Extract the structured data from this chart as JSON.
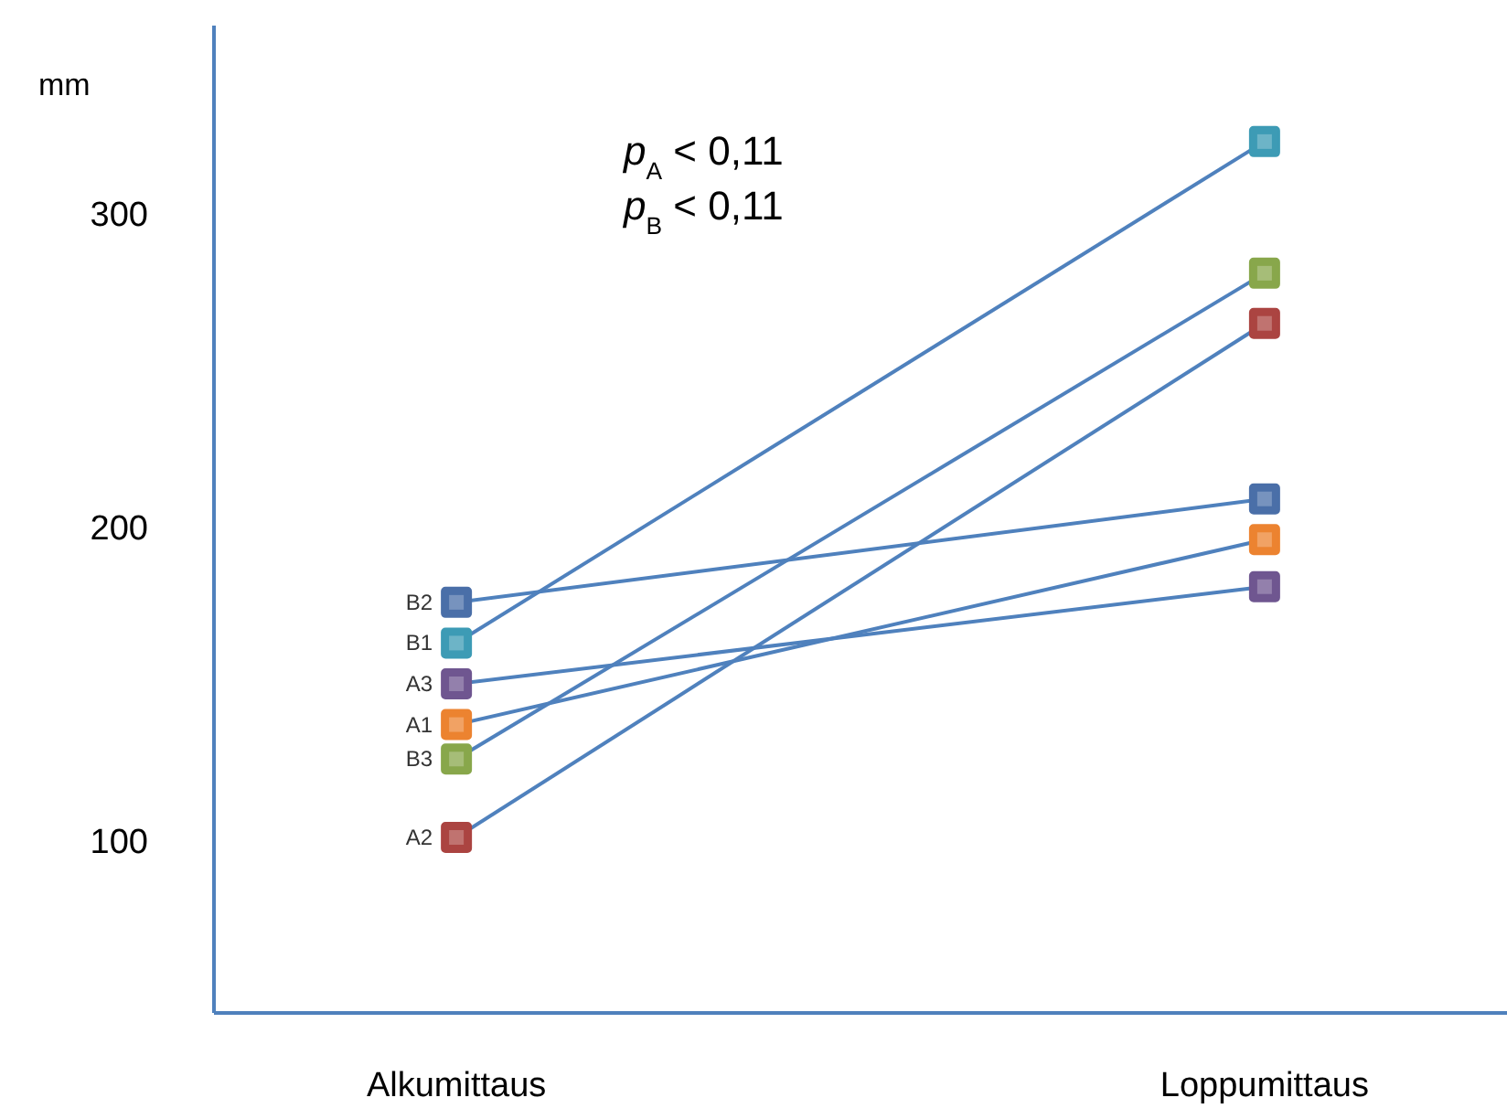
{
  "chart_data": {
    "type": "line",
    "categories": [
      "Alkumittaus",
      "Loppumittaus"
    ],
    "ylabel": "mm",
    "ylim": [
      45,
      360
    ],
    "yticks": [
      100,
      200,
      300
    ],
    "grid": false,
    "legend": false,
    "marker": "square",
    "line_style": "solid",
    "color": "#4f81bd",
    "annotations": [
      "p$_{A}$ < 0,11",
      "p$_{B}$ < 0,11"
    ],
    "series": [
      {
        "name": "B2",
        "color": "#4a6fa8",
        "values": [
          176,
          209
        ]
      },
      {
        "name": "B1",
        "color": "#3d9bb5",
        "values": [
          163,
          323
        ]
      },
      {
        "name": "A3",
        "color": "#6f5690",
        "values": [
          150,
          181
        ]
      },
      {
        "name": "A1",
        "color": "#ec8330",
        "values": [
          137,
          196
        ]
      },
      {
        "name": "B3",
        "color": "#88a74b",
        "values": [
          126,
          281
        ]
      },
      {
        "name": "A2",
        "color": "#ab4441",
        "values": [
          101,
          265
        ]
      }
    ]
  }
}
